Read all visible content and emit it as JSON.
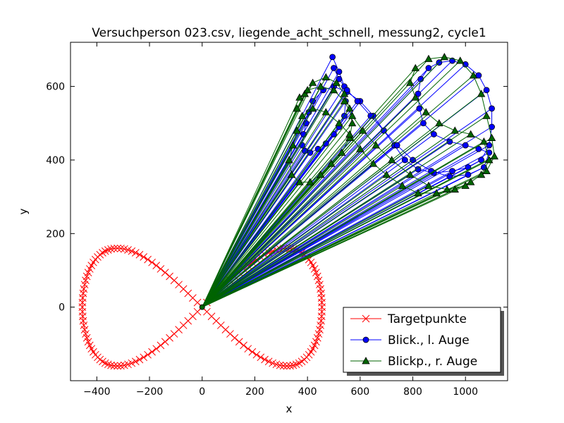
{
  "chart_data": {
    "type": "line",
    "title": "Versuchperson 023.csv, liegende_acht_schnell, messung2, cycle1",
    "xlabel": "x",
    "ylabel": "y",
    "xlim": [
      -500,
      1160
    ],
    "ylim": [
      -200,
      720
    ],
    "x_ticks": [
      -400,
      -200,
      0,
      200,
      400,
      600,
      800,
      1000
    ],
    "x_tick_labels": [
      "−400",
      "−200",
      "0",
      "200",
      "400",
      "600",
      "800",
      "1000"
    ],
    "y_ticks": [
      0,
      200,
      400,
      600
    ],
    "y_tick_labels": [
      "0",
      "200",
      "400",
      "600"
    ],
    "grid": false,
    "legend_placement": "lower-right",
    "origin": [
      0,
      0
    ],
    "series": [
      {
        "name": "Targetpunkte",
        "color": "#ff0000",
        "marker": "x",
        "shape": "lemniscate",
        "amplitude_x": 455,
        "amplitude_y": 160,
        "n_points": 160
      },
      {
        "name": "Blick., l. Auge",
        "color": "#0000ff",
        "marker": "circle",
        "points": [
          [
            495,
            680
          ],
          [
            520,
            640
          ],
          [
            540,
            600
          ],
          [
            545,
            560
          ],
          [
            540,
            520
          ],
          [
            520,
            490
          ],
          [
            500,
            470
          ],
          [
            470,
            445
          ],
          [
            440,
            430
          ],
          [
            410,
            420
          ],
          [
            390,
            425
          ],
          [
            380,
            440
          ],
          [
            385,
            470
          ],
          [
            395,
            500
          ],
          [
            405,
            530
          ],
          [
            420,
            560
          ],
          [
            460,
            590
          ],
          [
            500,
            600
          ],
          [
            550,
            585
          ],
          [
            600,
            560
          ],
          [
            650,
            520
          ],
          [
            690,
            480
          ],
          [
            730,
            440
          ],
          [
            770,
            400
          ],
          [
            820,
            375
          ],
          [
            880,
            365
          ],
          [
            950,
            370
          ],
          [
            1010,
            380
          ],
          [
            1060,
            400
          ],
          [
            1090,
            440
          ],
          [
            1100,
            490
          ],
          [
            1100,
            540
          ],
          [
            1080,
            590
          ],
          [
            1050,
            630
          ],
          [
            1000,
            660
          ],
          [
            950,
            670
          ],
          [
            900,
            665
          ],
          [
            860,
            650
          ],
          [
            830,
            620
          ],
          [
            820,
            580
          ],
          [
            825,
            540
          ],
          [
            840,
            500
          ],
          [
            880,
            470
          ],
          [
            940,
            450
          ],
          [
            1000,
            440
          ],
          [
            1050,
            430
          ],
          [
            1090,
            420
          ],
          [
            1070,
            380
          ],
          [
            1010,
            360
          ],
          [
            940,
            355
          ],
          [
            870,
            370
          ],
          [
            800,
            400
          ],
          [
            740,
            440
          ],
          [
            690,
            480
          ],
          [
            640,
            520
          ],
          [
            590,
            560
          ],
          [
            550,
            590
          ],
          [
            520,
            620
          ],
          [
            500,
            650
          ]
        ]
      },
      {
        "name": "Blickp., r. Auge",
        "color": "#006400",
        "marker": "triangle",
        "points": [
          [
            360,
            540
          ],
          [
            390,
            580
          ],
          [
            420,
            610
          ],
          [
            470,
            625
          ],
          [
            510,
            610
          ],
          [
            540,
            580
          ],
          [
            560,
            540
          ],
          [
            570,
            500
          ],
          [
            560,
            460
          ],
          [
            530,
            420
          ],
          [
            490,
            390
          ],
          [
            450,
            360
          ],
          [
            410,
            340
          ],
          [
            370,
            340
          ],
          [
            340,
            360
          ],
          [
            330,
            400
          ],
          [
            345,
            440
          ],
          [
            360,
            480
          ],
          [
            380,
            520
          ],
          [
            420,
            540
          ],
          [
            470,
            530
          ],
          [
            520,
            500
          ],
          [
            560,
            470
          ],
          [
            600,
            430
          ],
          [
            650,
            390
          ],
          [
            700,
            360
          ],
          [
            760,
            330
          ],
          [
            820,
            310
          ],
          [
            890,
            310
          ],
          [
            960,
            320
          ],
          [
            1020,
            340
          ],
          [
            1080,
            370
          ],
          [
            1110,
            410
          ],
          [
            1100,
            460
          ],
          [
            1080,
            520
          ],
          [
            1060,
            580
          ],
          [
            1030,
            630
          ],
          [
            980,
            670
          ],
          [
            920,
            680
          ],
          [
            860,
            675
          ],
          [
            810,
            650
          ],
          [
            790,
            610
          ],
          [
            810,
            570
          ],
          [
            850,
            530
          ],
          [
            900,
            500
          ],
          [
            960,
            480
          ],
          [
            1020,
            470
          ],
          [
            1070,
            450
          ],
          [
            1090,
            400
          ],
          [
            1060,
            360
          ],
          [
            1000,
            330
          ],
          [
            930,
            320
          ],
          [
            860,
            330
          ],
          [
            790,
            360
          ],
          [
            720,
            400
          ],
          [
            660,
            440
          ],
          [
            610,
            480
          ],
          [
            570,
            520
          ],
          [
            540,
            560
          ],
          [
            500,
            590
          ],
          [
            450,
            600
          ],
          [
            400,
            590
          ],
          [
            370,
            570
          ]
        ]
      }
    ]
  },
  "legend": {
    "items": [
      {
        "label": "Targetpunkte",
        "color": "#ff0000",
        "marker": "x"
      },
      {
        "label": "Blick., l. Auge",
        "color": "#0000ff",
        "marker": "circle"
      },
      {
        "label": "Blickp., r. Auge",
        "color": "#006400",
        "marker": "triangle"
      }
    ]
  }
}
